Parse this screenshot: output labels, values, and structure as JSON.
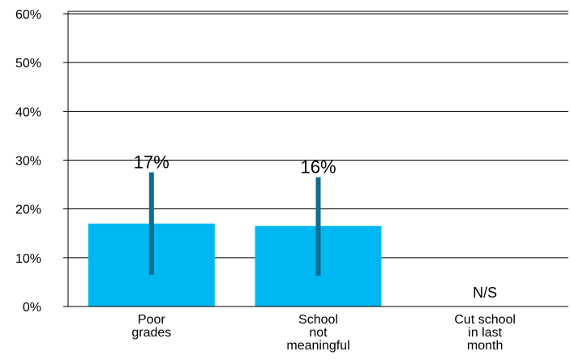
{
  "chart_data": {
    "type": "bar",
    "categories": [
      [
        "Poor",
        "grades"
      ],
      [
        "School",
        "not",
        "meaningful"
      ],
      [
        "Cut school",
        "in last",
        "month"
      ]
    ],
    "values": [
      17,
      16.5,
      null
    ],
    "error_bars": [
      {
        "low": 6.5,
        "high": 27.5
      },
      {
        "low": 6.3,
        "high": 26.5
      },
      null
    ],
    "data_labels": [
      "17%",
      "16%",
      "N/S"
    ],
    "ylim": [
      0,
      60
    ],
    "yticks": [
      0,
      10,
      20,
      30,
      40,
      50,
      60
    ],
    "ytick_labels": [
      "0%",
      "10%",
      "20%",
      "30%",
      "40%",
      "50%",
      "60%"
    ],
    "grid": true,
    "colors": {
      "bar": "#00b8f1",
      "error_bar": "#0e6e8f",
      "grid": "#000000"
    }
  }
}
